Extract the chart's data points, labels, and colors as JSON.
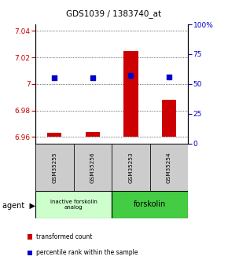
{
  "title": "GDS1039 / 1383740_at",
  "samples": [
    "GSM35255",
    "GSM35256",
    "GSM35253",
    "GSM35254"
  ],
  "bar_values": [
    6.963,
    6.964,
    7.025,
    6.988
  ],
  "bar_baseline": 6.96,
  "percentile_values": [
    55,
    55,
    57,
    56
  ],
  "percentile_scale_min": 0,
  "percentile_scale_max": 100,
  "ylim_min": 6.955,
  "ylim_max": 7.045,
  "yticks": [
    6.96,
    6.98,
    7.0,
    7.02,
    7.04
  ],
  "ytick_labels": [
    "6.96",
    "6.98",
    "7",
    "7.02",
    "7.04"
  ],
  "right_yticks": [
    0,
    25,
    50,
    75,
    100
  ],
  "right_ytick_labels": [
    "0",
    "25",
    "50",
    "75",
    "100%"
  ],
  "bar_color": "#cc0000",
  "dot_color": "#0000cc",
  "group1_label": "inactive forskolin\nanalog",
  "group2_label": "forskolin",
  "group1_color": "#ccffcc",
  "group2_color": "#44cc44",
  "legend_bar_label": "transformed count",
  "legend_dot_label": "percentile rank within the sample",
  "sample_box_color": "#cccccc",
  "ylabel_color_left": "#cc0000",
  "ylabel_color_right": "#0000cc",
  "figwidth": 2.9,
  "figheight": 3.45
}
